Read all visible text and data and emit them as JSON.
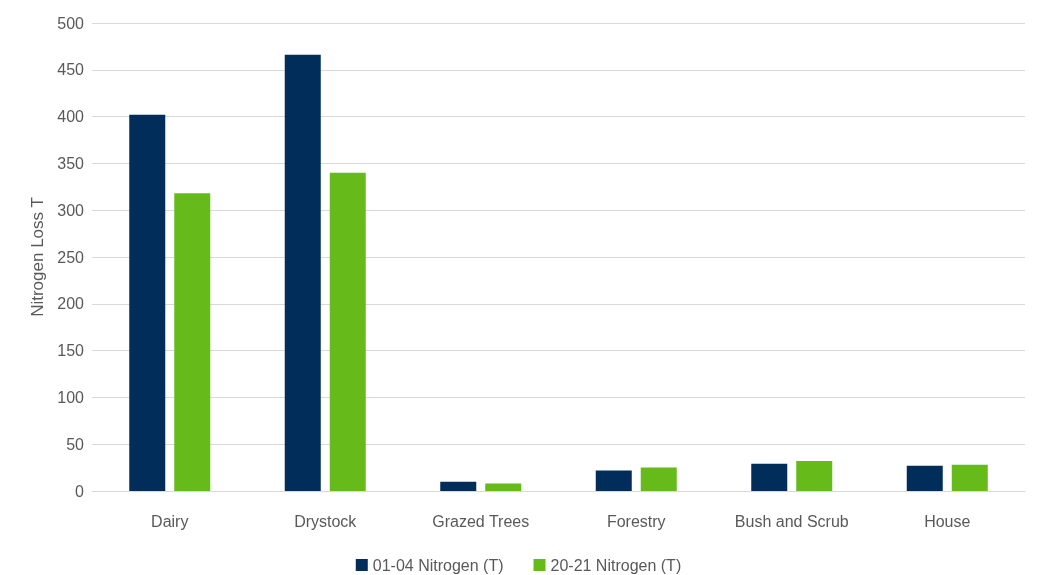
{
  "chart_data": {
    "type": "bar",
    "ylabel": "Nitrogen Loss T",
    "categories": [
      "Dairy",
      "Drystock",
      "Grazed Trees",
      "Forestry",
      "Bush and Scrub",
      "House"
    ],
    "series": [
      {
        "name": "01-04 Nitrogen (T)",
        "color": "#002d5a",
        "values": [
          402,
          466,
          10,
          22,
          29,
          27
        ]
      },
      {
        "name": "20-21 Nitrogen (T)",
        "color": "#66bb1a",
        "values": [
          318,
          340,
          8,
          25,
          32,
          28
        ]
      }
    ],
    "ylim": [
      0,
      500
    ],
    "yticks": [
      0,
      50,
      100,
      150,
      200,
      250,
      300,
      350,
      400,
      450,
      500
    ],
    "grid": "y",
    "legend": "bottom"
  }
}
